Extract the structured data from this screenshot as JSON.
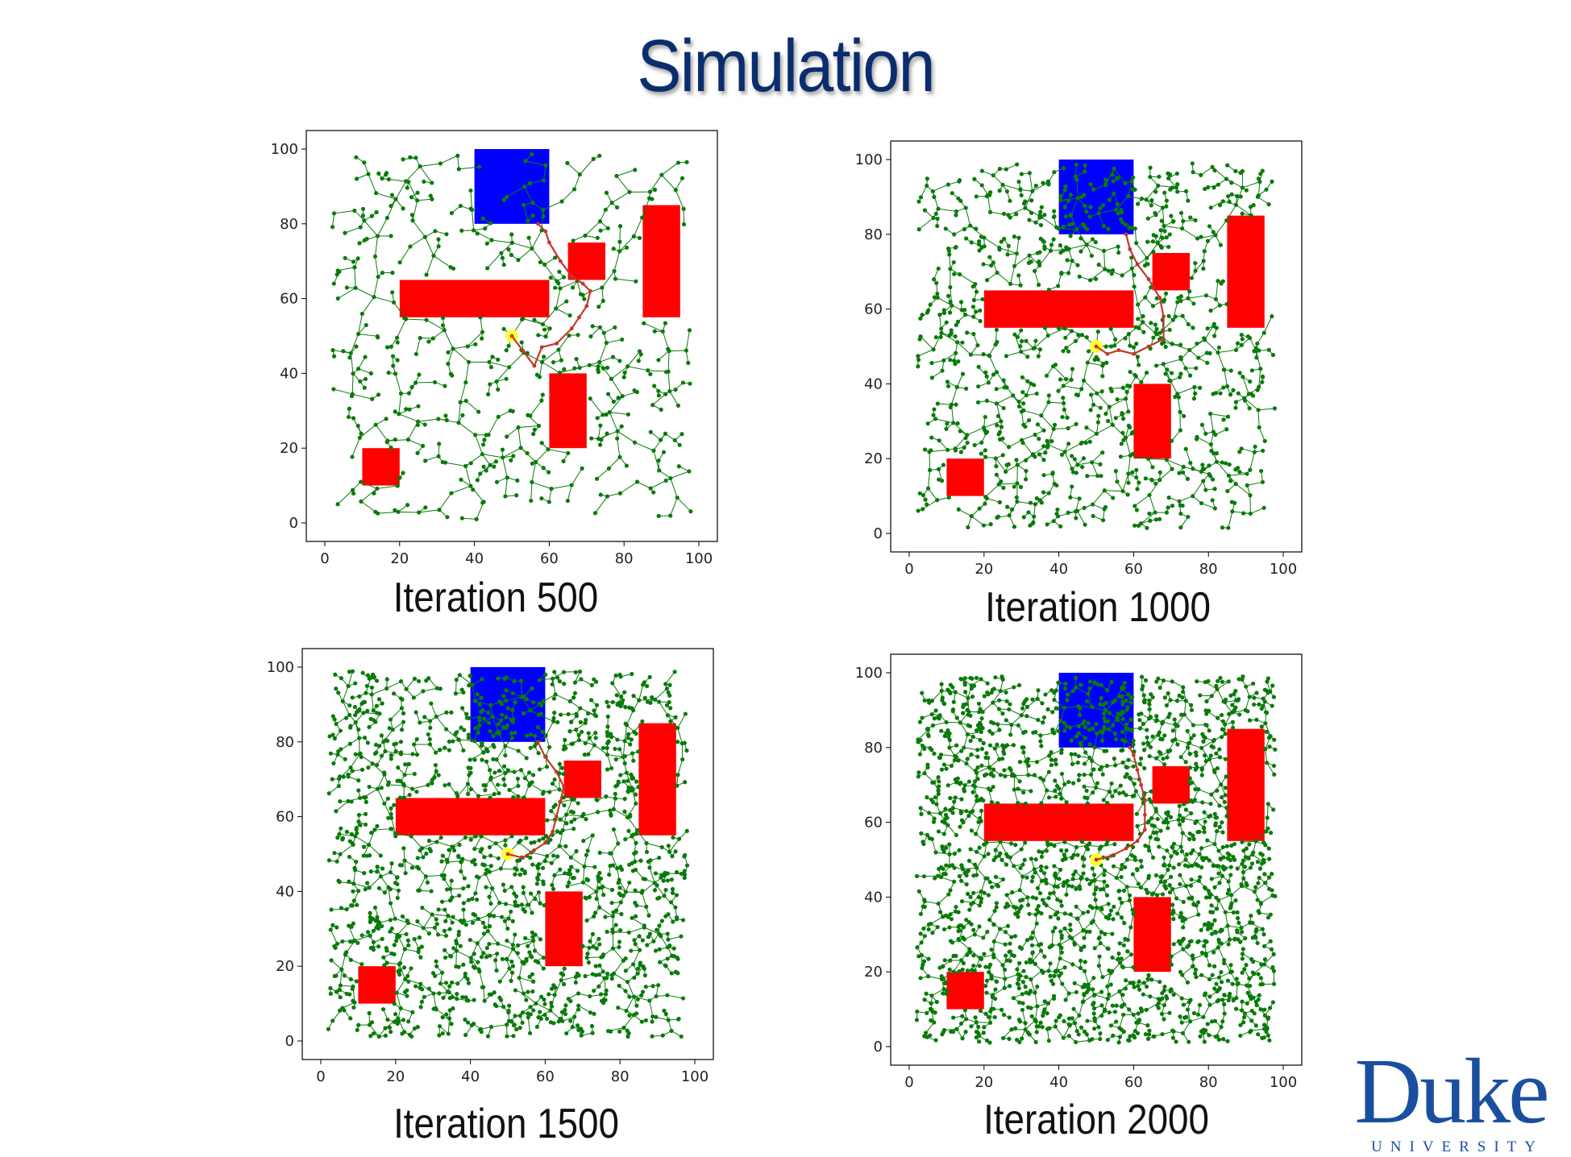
{
  "title": "Simulation",
  "colors": {
    "title": "#0b2d6e",
    "obstacle": "#ff0000",
    "goal": "#0000ff",
    "tree": "#0a7a0a",
    "path": "#c0392b",
    "start": "#ffff33",
    "logo": "#1a4fa0"
  },
  "logo": {
    "word": "Duke",
    "sub": "UNIVERSITY"
  },
  "chart_data": [
    {
      "type": "scatter",
      "caption": "Iteration 500",
      "iteration": 500,
      "xlim": [
        0,
        100
      ],
      "ylim": [
        0,
        100
      ],
      "xticks": [
        "0",
        "20",
        "40",
        "60",
        "80",
        "100"
      ],
      "yticks": [
        "0",
        "20",
        "40",
        "60",
        "80",
        "100"
      ],
      "start": [
        50,
        50
      ],
      "goal_region": [
        40,
        80,
        20,
        20
      ],
      "obstacles": [
        [
          20,
          55,
          40,
          10
        ],
        [
          65,
          65,
          10,
          10
        ],
        [
          85,
          55,
          10,
          30
        ],
        [
          60,
          20,
          10,
          20
        ],
        [
          10,
          10,
          10,
          10
        ]
      ],
      "path": [
        [
          50,
          50
        ],
        [
          53,
          46
        ],
        [
          56,
          42
        ],
        [
          58,
          47
        ],
        [
          62,
          48
        ],
        [
          66,
          52
        ],
        [
          68,
          55
        ],
        [
          70,
          58
        ],
        [
          71,
          62
        ],
        [
          69,
          64
        ],
        [
          66,
          66
        ],
        [
          63,
          70
        ],
        [
          60,
          75
        ],
        [
          59,
          78
        ],
        [
          57,
          80
        ]
      ],
      "tree_nodes": 500,
      "grid": false
    },
    {
      "type": "scatter",
      "caption": "Iteration 1000",
      "iteration": 1000,
      "xlim": [
        0,
        100
      ],
      "ylim": [
        0,
        100
      ],
      "xticks": [
        "0",
        "20",
        "40",
        "60",
        "80",
        "100"
      ],
      "yticks": [
        "0",
        "20",
        "40",
        "60",
        "80",
        "100"
      ],
      "start": [
        50,
        50
      ],
      "goal_region": [
        40,
        80,
        20,
        20
      ],
      "obstacles": [
        [
          20,
          55,
          40,
          10
        ],
        [
          65,
          65,
          10,
          10
        ],
        [
          85,
          55,
          10,
          30
        ],
        [
          60,
          20,
          10,
          20
        ],
        [
          10,
          10,
          10,
          10
        ]
      ],
      "path": [
        [
          50,
          50
        ],
        [
          53,
          48
        ],
        [
          56,
          49
        ],
        [
          60,
          48
        ],
        [
          64,
          50
        ],
        [
          68,
          52
        ],
        [
          68,
          58
        ],
        [
          67,
          63
        ],
        [
          64,
          68
        ],
        [
          61,
          72
        ],
        [
          59,
          76
        ],
        [
          58,
          80
        ]
      ],
      "tree_nodes": 1000,
      "grid": false
    },
    {
      "type": "scatter",
      "caption": "Iteration 1500",
      "iteration": 1500,
      "xlim": [
        0,
        100
      ],
      "ylim": [
        0,
        100
      ],
      "xticks": [
        "0",
        "20",
        "40",
        "60",
        "80",
        "100"
      ],
      "yticks": [
        "0",
        "20",
        "40",
        "60",
        "80",
        "100"
      ],
      "start": [
        50,
        50
      ],
      "goal_region": [
        40,
        80,
        20,
        20
      ],
      "obstacles": [
        [
          20,
          55,
          40,
          10
        ],
        [
          65,
          65,
          10,
          10
        ],
        [
          85,
          55,
          10,
          30
        ],
        [
          60,
          20,
          10,
          20
        ],
        [
          10,
          10,
          10,
          10
        ]
      ],
      "path": [
        [
          50,
          50
        ],
        [
          54,
          49
        ],
        [
          57,
          51
        ],
        [
          60,
          53
        ],
        [
          62,
          56
        ],
        [
          63,
          60
        ],
        [
          64,
          64
        ],
        [
          65,
          68
        ],
        [
          63,
          72
        ],
        [
          60,
          76
        ],
        [
          58,
          80
        ]
      ],
      "tree_nodes": 1500,
      "grid": false
    },
    {
      "type": "scatter",
      "caption": "Iteration 2000",
      "iteration": 2000,
      "xlim": [
        0,
        100
      ],
      "ylim": [
        0,
        100
      ],
      "xticks": [
        "0",
        "20",
        "40",
        "60",
        "80",
        "100"
      ],
      "yticks": [
        "0",
        "20",
        "40",
        "60",
        "80",
        "100"
      ],
      "start": [
        50,
        50
      ],
      "goal_region": [
        40,
        80,
        20,
        20
      ],
      "obstacles": [
        [
          20,
          55,
          40,
          10
        ],
        [
          65,
          65,
          10,
          10
        ],
        [
          85,
          55,
          10,
          30
        ],
        [
          60,
          20,
          10,
          20
        ],
        [
          10,
          10,
          10,
          10
        ]
      ],
      "path": [
        [
          50,
          50
        ],
        [
          54,
          51
        ],
        [
          58,
          53
        ],
        [
          61,
          55
        ],
        [
          63,
          58
        ],
        [
          63,
          62
        ],
        [
          63,
          66
        ],
        [
          62,
          70
        ],
        [
          61,
          74
        ],
        [
          60,
          78
        ],
        [
          59,
          80
        ]
      ],
      "tree_nodes": 2000,
      "grid": false
    }
  ]
}
